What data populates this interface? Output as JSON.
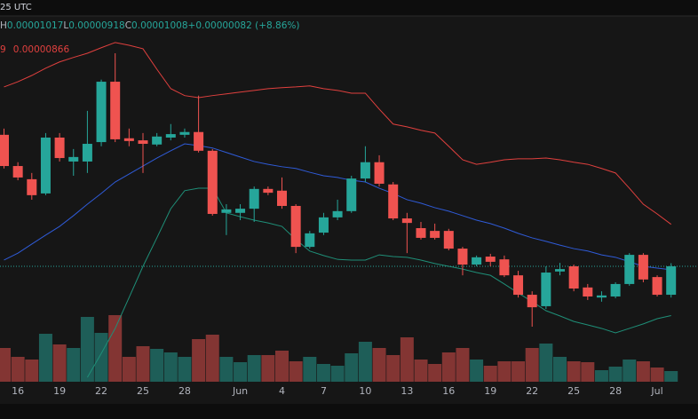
{
  "header": {
    "time_note": "25 UTC"
  },
  "legend": {
    "items": [
      {
        "label": "H",
        "value": "0.00001017"
      },
      {
        "label": "L",
        "value": "0.00000918"
      },
      {
        "label": "C",
        "value": "0.00001008"
      }
    ],
    "change": "+0.00000082 (+8.86%)",
    "bands_upper_tail": "9",
    "bands_lower": "0.00000866"
  },
  "chart_data": {
    "type": "candlestick",
    "categories": [
      null,
      "16",
      null,
      null,
      "19",
      null,
      null,
      "22",
      null,
      null,
      "25",
      null,
      null,
      "28",
      null,
      null,
      null,
      "Jun",
      null,
      null,
      "4",
      null,
      null,
      "7",
      null,
      null,
      "10",
      null,
      null,
      "13",
      null,
      null,
      "16",
      null,
      null,
      "19",
      null,
      null,
      "22",
      null,
      null,
      "25",
      null,
      null,
      "28",
      null,
      null,
      "Jul",
      null
    ],
    "open": [
      1.387e-05,
      1.297e-05,
      1.259e-05,
      1.218e-05,
      1.379e-05,
      1.31e-05,
      1.31e-05,
      1.366e-05,
      1.54e-05,
      1.377e-05,
      1.371e-05,
      1.359e-05,
      1.379e-05,
      1.387e-05,
      1.395e-05,
      1.341e-05,
      1.162e-05,
      1.162e-05,
      1.174e-05,
      1.231e-05,
      1.226e-05,
      1.182e-05,
      1.064e-05,
      1.105e-05,
      1.149e-05,
      1.167e-05,
      1.261e-05,
      1.308e-05,
      1.244e-05,
      1.146e-05,
      1.118e-05,
      1.11e-05,
      1.11e-05,
      1.059e-05,
      1.013e-05,
      1.036e-05,
      1.028e-05,
      9.82e-06,
      9.26e-06,
      8.93e-06,
      9.93e-06,
      1.008e-05,
      9.47e-06,
      9.18e-06,
      9.21e-06,
      9.57e-06,
      1.041e-05,
      9.77e-06,
      9.26e-06
    ],
    "high": [
      1.405e-05,
      1.308e-05,
      1.277e-05,
      1.392e-05,
      1.392e-05,
      1.346e-05,
      1.456e-05,
      1.546e-05,
      1.622e-05,
      1.405e-05,
      1.392e-05,
      1.392e-05,
      1.418e-05,
      1.405e-05,
      1.5e-05,
      1.346e-05,
      1.187e-05,
      1.187e-05,
      1.238e-05,
      1.238e-05,
      1.264e-05,
      1.187e-05,
      1.11e-05,
      1.162e-05,
      1.2e-05,
      1.269e-05,
      1.354e-05,
      1.328e-05,
      1.251e-05,
      1.162e-05,
      1.136e-05,
      1.131e-05,
      1.116e-05,
      1.064e-05,
      1.039e-05,
      1.044e-05,
      1.039e-05,
      9.95e-06,
      9.36e-06,
      1.008e-05,
      1.018e-05,
      1.013e-05,
      9.57e-06,
      9.36e-06,
      9.62e-06,
      1.046e-05,
      1.046e-05,
      9.82e-06,
      1.017e-05
    ],
    "low": [
      1.29e-05,
      1.256e-05,
      1.2e-05,
      1.213e-05,
      1.31e-05,
      1.269e-05,
      1.277e-05,
      1.354e-05,
      1.366e-05,
      1.354e-05,
      1.277e-05,
      1.354e-05,
      1.371e-05,
      1.379e-05,
      1.336e-05,
      1.154e-05,
      1.098e-05,
      1.141e-05,
      1.136e-05,
      1.213e-05,
      1.174e-05,
      1.046e-05,
      1.059e-05,
      1.098e-05,
      1.141e-05,
      1.162e-05,
      1.251e-05,
      1.238e-05,
      1.141e-05,
      1.046e-05,
      1.085e-05,
      1.085e-05,
      1.054e-05,
      9.82e-06,
      1.008e-05,
      1.008e-05,
      9.77e-06,
      9.18e-06,
      8.34e-06,
      8.85e-06,
      9.82e-06,
      9.36e-06,
      9.11e-06,
      9.06e-06,
      9.16e-06,
      9.52e-06,
      9.62e-06,
      9.21e-06,
      9.18e-06
    ],
    "close": [
      1.297e-05,
      1.264e-05,
      1.213e-05,
      1.379e-05,
      1.32e-05,
      1.323e-05,
      1.361e-05,
      1.54e-05,
      1.374e-05,
      1.369e-05,
      1.361e-05,
      1.382e-05,
      1.389e-05,
      1.395e-05,
      1.341e-05,
      1.159e-05,
      1.172e-05,
      1.174e-05,
      1.231e-05,
      1.22e-05,
      1.182e-05,
      1.064e-05,
      1.103e-05,
      1.149e-05,
      1.167e-05,
      1.261e-05,
      1.308e-05,
      1.246e-05,
      1.146e-05,
      1.133e-05,
      1.09e-05,
      1.09e-05,
      1.059e-05,
      1.013e-05,
      1.034e-05,
      1.021e-05,
      9.82e-06,
      9.26e-06,
      8.9e-06,
      9.9e-06,
      1e-05,
      9.44e-06,
      9.21e-06,
      9.24e-06,
      9.57e-06,
      1.041e-05,
      9.7e-06,
      9.26e-06,
      1.008e-05
    ],
    "volume": [
      38,
      28,
      25,
      54,
      42,
      38,
      73,
      55,
      75,
      28,
      40,
      37,
      33,
      28,
      48,
      53,
      28,
      22,
      30,
      30,
      35,
      23,
      28,
      20,
      18,
      32,
      45,
      38,
      30,
      50,
      25,
      20,
      33,
      38,
      25,
      18,
      23,
      23,
      38,
      43,
      28,
      23,
      22,
      13,
      17,
      25,
      23,
      16,
      12
    ],
    "bands": {
      "upper": {
        "color": "#e0403e",
        "values": [
          1.525e-05,
          1.54e-05,
          1.558e-05,
          1.579e-05,
          1.597e-05,
          1.61e-05,
          1.622e-05,
          1.638e-05,
          1.653e-05,
          1.645e-05,
          1.635e-05,
          1.576e-05,
          1.52e-05,
          1.5e-05,
          1.494e-05,
          1.5e-05,
          1.505e-05,
          1.51e-05,
          1.515e-05,
          1.52e-05,
          1.523e-05,
          1.525e-05,
          1.528e-05,
          1.52e-05,
          1.515e-05,
          1.507e-05,
          1.507e-05,
          1.461e-05,
          1.418e-05,
          1.41e-05,
          1.4e-05,
          1.392e-05,
          1.354e-05,
          1.315e-05,
          1.302e-05,
          1.308e-05,
          1.315e-05,
          1.318e-05,
          1.318e-05,
          1.32e-05,
          1.315e-05,
          1.308e-05,
          1.302e-05,
          1.29e-05,
          1.277e-05,
          1.233e-05,
          1.187e-05,
          1.159e-05,
          1.129e-05
        ]
      },
      "basis": {
        "color": "#2f5bd8",
        "values": [
          1.026e-05,
          1.046e-05,
          1.072e-05,
          1.098e-05,
          1.123e-05,
          1.154e-05,
          1.187e-05,
          1.218e-05,
          1.251e-05,
          1.274e-05,
          1.297e-05,
          1.32e-05,
          1.341e-05,
          1.361e-05,
          1.356e-05,
          1.349e-05,
          1.336e-05,
          1.323e-05,
          1.31e-05,
          1.302e-05,
          1.295e-05,
          1.29e-05,
          1.279e-05,
          1.269e-05,
          1.264e-05,
          1.256e-05,
          1.251e-05,
          1.233e-05,
          1.218e-05,
          1.2e-05,
          1.19e-05,
          1.177e-05,
          1.167e-05,
          1.154e-05,
          1.141e-05,
          1.131e-05,
          1.118e-05,
          1.103e-05,
          1.09e-05,
          1.08e-05,
          1.069e-05,
          1.059e-05,
          1.052e-05,
          1.041e-05,
          1.034e-05,
          1.021e-05,
          1.008e-05,
          1.003e-05,
          9.98e-06
        ]
      },
      "lower": {
        "color": "#1f8f78",
        "values": [
          null,
          null,
          null,
          null,
          null,
          null,
          6.88e-06,
          7.57e-06,
          8.29e-06,
          9.18e-06,
          1.008e-05,
          1.09e-05,
          1.174e-05,
          1.226e-05,
          1.233e-05,
          1.233e-05,
          1.162e-05,
          1.151e-05,
          1.141e-05,
          1.133e-05,
          1.123e-05,
          1.085e-05,
          1.052e-05,
          1.039e-05,
          1.028e-05,
          1.026e-05,
          1.026e-05,
          1.041e-05,
          1.036e-05,
          1.034e-05,
          1.026e-05,
          1.016e-05,
          1.008e-05,
          1e-05,
          9.9e-06,
          9.82e-06,
          9.57e-06,
          9.31e-06,
          9.06e-06,
          8.8e-06,
          8.65e-06,
          8.49e-06,
          8.39e-06,
          8.29e-06,
          8.16e-06,
          8.29e-06,
          8.42e-06,
          8.57e-06,
          8.66e-06
        ]
      }
    },
    "up_color": "#26a69a",
    "down_color": "#ef5350",
    "last_price_line": true
  }
}
